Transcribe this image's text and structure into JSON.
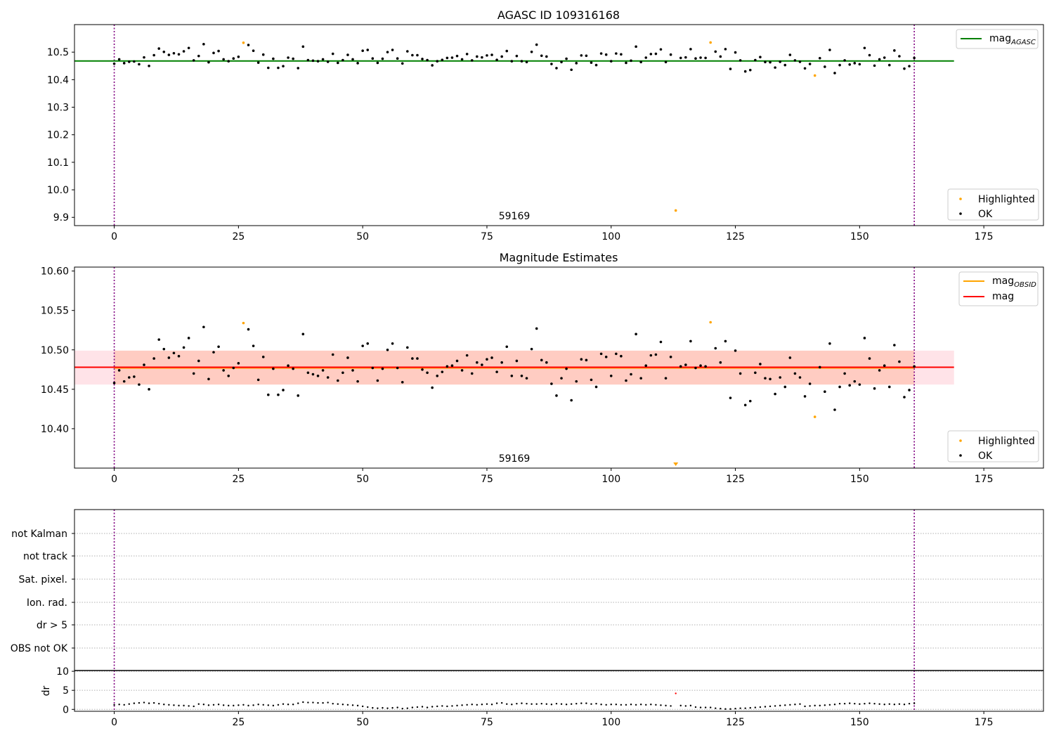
{
  "chart_data": [
    {
      "type": "scatter",
      "title": "AGASC ID 109316168",
      "xlim": [
        -8,
        187
      ],
      "ylim": [
        9.87,
        10.6
      ],
      "xticks": [
        0,
        25,
        50,
        75,
        100,
        125,
        150,
        175
      ],
      "yticks": [
        9.9,
        10.0,
        10.1,
        10.2,
        10.3,
        10.4,
        10.5
      ],
      "ytick_decimals": 1,
      "annotation": "59169",
      "vlines": [
        0,
        161
      ],
      "hline": {
        "name": "mag_AGASC",
        "value": 10.468,
        "x_range": [
          -8,
          169
        ],
        "color": "#008000"
      },
      "legend_line": {
        "label": "mag",
        "sub": "AGASC",
        "color": "#008000"
      },
      "legend_points": [
        {
          "label": "Highlighted",
          "color": "#ffa500"
        },
        {
          "label": "OK",
          "color": "#000000"
        }
      ],
      "series": [
        {
          "name": "OK",
          "color": "#000000",
          "x": [
            0,
            1,
            2,
            3,
            4,
            5,
            6,
            7,
            8,
            9,
            10,
            11,
            12,
            13,
            14,
            15,
            16,
            17,
            18,
            19,
            20,
            21,
            22,
            23,
            24,
            25,
            27,
            28,
            29,
            30,
            31,
            32,
            33,
            34,
            35,
            36,
            37,
            38,
            39,
            40,
            41,
            42,
            43,
            44,
            45,
            46,
            47,
            48,
            49,
            50,
            51,
            52,
            53,
            54,
            55,
            56,
            57,
            58,
            59,
            60,
            61,
            62,
            63,
            64,
            65,
            66,
            67,
            68,
            69,
            70,
            71,
            72,
            73,
            74,
            75,
            76,
            77,
            78,
            79,
            80,
            81,
            82,
            83,
            84,
            85,
            86,
            87,
            88,
            89,
            90,
            91,
            92,
            93,
            94,
            95,
            96,
            97,
            98,
            99,
            100,
            101,
            102,
            103,
            104,
            105,
            106,
            107,
            108,
            109,
            110,
            111,
            112,
            114,
            115,
            116,
            117,
            118,
            119,
            121,
            122,
            123,
            124,
            125,
            126,
            127,
            128,
            129,
            130,
            131,
            132,
            133,
            134,
            135,
            136,
            137,
            138,
            139,
            140,
            142,
            143,
            144,
            145,
            146,
            147,
            148,
            149,
            150,
            151,
            152,
            153,
            154,
            155,
            156,
            157,
            158,
            159,
            160,
            161
          ],
          "y": [
            10.458,
            10.474,
            10.46,
            10.465,
            10.466,
            10.456,
            10.481,
            10.45,
            10.489,
            10.513,
            10.501,
            10.49,
            10.496,
            10.492,
            10.503,
            10.515,
            10.47,
            10.486,
            10.529,
            10.463,
            10.497,
            10.504,
            10.474,
            10.467,
            10.477,
            10.483,
            10.526,
            10.505,
            10.462,
            10.491,
            10.443,
            10.476,
            10.443,
            10.449,
            10.48,
            10.476,
            10.442,
            10.52,
            10.471,
            10.469,
            10.467,
            10.474,
            10.465,
            10.494,
            10.461,
            10.471,
            10.49,
            10.474,
            10.46,
            10.505,
            10.508,
            10.477,
            10.461,
            10.476,
            10.5,
            10.508,
            10.477,
            10.459,
            10.503,
            10.489,
            10.489,
            10.475,
            10.471,
            10.452,
            10.467,
            10.472,
            10.479,
            10.48,
            10.486,
            10.474,
            10.493,
            10.47,
            10.484,
            10.481,
            10.488,
            10.49,
            10.472,
            10.484,
            10.504,
            10.467,
            10.486,
            10.467,
            10.464,
            10.501,
            10.527,
            10.487,
            10.484,
            10.457,
            10.442,
            10.464,
            10.476,
            10.436,
            10.46,
            10.488,
            10.487,
            10.462,
            10.453,
            10.495,
            10.491,
            10.467,
            10.495,
            10.492,
            10.461,
            10.469,
            10.52,
            10.464,
            10.48,
            10.493,
            10.494,
            10.51,
            10.464,
            10.491,
            10.479,
            10.481,
            10.511,
            10.477,
            10.48,
            10.479,
            10.502,
            10.484,
            10.511,
            10.439,
            10.499,
            10.47,
            10.43,
            10.435,
            10.471,
            10.482,
            10.464,
            10.463,
            10.444,
            10.465,
            10.453,
            10.49,
            10.47,
            10.465,
            10.441,
            10.457,
            10.478,
            10.447,
            10.508,
            10.424,
            10.453,
            10.47,
            10.455,
            10.46,
            10.456,
            10.515,
            10.489,
            10.451,
            10.474,
            10.48,
            10.453,
            10.506,
            10.485,
            10.44,
            10.449,
            10.479
          ]
        },
        {
          "name": "Highlighted",
          "color": "#ffa500",
          "x": [
            26,
            113,
            120,
            141
          ],
          "y": [
            10.534,
            9.925,
            10.535,
            10.415
          ]
        }
      ]
    },
    {
      "type": "scatter",
      "title": "Magnitude Estimates",
      "xlim": [
        -8,
        187
      ],
      "ylim": [
        10.35,
        10.605
      ],
      "xticks": [
        0,
        25,
        50,
        75,
        100,
        125,
        150,
        175
      ],
      "yticks": [
        10.4,
        10.45,
        10.5,
        10.55,
        10.6
      ],
      "ytick_decimals": 2,
      "annotation": "59169",
      "vlines": [
        0,
        161
      ],
      "hline": {
        "name": "mag",
        "value": 10.478,
        "x_range": [
          -8,
          169
        ],
        "color": "#ff0000"
      },
      "bands": [
        {
          "y0": 10.456,
          "y1": 10.499,
          "x_range": [
            -8,
            169
          ],
          "color": "#ffc0cb",
          "opacity": 0.45
        },
        {
          "y0": 10.456,
          "y1": 10.499,
          "x_range": [
            0,
            161
          ],
          "color": "#ffa07a",
          "opacity": 0.35
        }
      ],
      "obsid_line": {
        "name": "mag_OBSID",
        "value": 10.477,
        "x_range": [
          0,
          161
        ],
        "color": "#ffa500"
      },
      "legend_lines": [
        {
          "label": "mag",
          "sub": "OBSID",
          "color": "#ffa500"
        },
        {
          "label": "mag",
          "sub": "",
          "color": "#ff0000"
        }
      ],
      "legend_points": [
        {
          "label": "Highlighted",
          "color": "#ffa500"
        },
        {
          "label": "OK",
          "color": "#000000"
        }
      ],
      "below_range_marker": {
        "x": 113,
        "color": "#ffa500"
      },
      "series": [
        {
          "name": "OK",
          "color": "#000000",
          "ref": 0
        },
        {
          "name": "Highlighted",
          "color": "#ffa500",
          "x": [
            26,
            120,
            141
          ],
          "y": [
            10.534,
            10.535,
            10.415
          ]
        }
      ]
    },
    {
      "type": "scatter",
      "title": "",
      "xlim": [
        -8,
        187
      ],
      "categories": [
        "not Kalman",
        "not track",
        "Sat. pixel.",
        "Ion. rad.",
        "dr > 5",
        "OBS not OK"
      ],
      "vlines": [
        0,
        161
      ]
    },
    {
      "type": "scatter",
      "title": "",
      "ylabel": "dr",
      "xlim": [
        -8,
        187
      ],
      "ylim": [
        -0.5,
        10.2
      ],
      "xticks": [
        0,
        25,
        50,
        75,
        100,
        125,
        150,
        175
      ],
      "yticks": [
        0,
        5,
        10
      ],
      "vlines": [
        0,
        161
      ],
      "series": [
        {
          "name": "OK",
          "color": "#000000",
          "x": [
            0,
            1,
            2,
            3,
            4,
            5,
            6,
            7,
            8,
            9,
            10,
            11,
            12,
            13,
            14,
            15,
            16,
            17,
            18,
            19,
            20,
            21,
            22,
            23,
            24,
            25,
            26,
            27,
            28,
            29,
            30,
            31,
            32,
            33,
            34,
            35,
            36,
            37,
            38,
            39,
            40,
            41,
            42,
            43,
            44,
            45,
            46,
            47,
            48,
            49,
            50,
            51,
            52,
            53,
            54,
            55,
            56,
            57,
            58,
            59,
            60,
            61,
            62,
            63,
            64,
            65,
            66,
            67,
            68,
            69,
            70,
            71,
            72,
            73,
            74,
            75,
            76,
            77,
            78,
            79,
            80,
            81,
            82,
            83,
            84,
            85,
            86,
            87,
            88,
            89,
            90,
            91,
            92,
            93,
            94,
            95,
            96,
            97,
            98,
            99,
            100,
            101,
            102,
            103,
            104,
            105,
            106,
            107,
            108,
            109,
            110,
            111,
            112,
            114,
            115,
            116,
            117,
            118,
            119,
            120,
            121,
            122,
            123,
            124,
            125,
            126,
            127,
            128,
            129,
            130,
            131,
            132,
            133,
            134,
            135,
            136,
            137,
            138,
            139,
            140,
            141,
            142,
            143,
            144,
            145,
            146,
            147,
            148,
            149,
            150,
            151,
            152,
            153,
            154,
            155,
            156,
            157,
            158,
            159,
            160,
            161
          ],
          "y": [
            1.2,
            1.3,
            1.2,
            1.4,
            1.6,
            1.7,
            1.8,
            1.6,
            1.7,
            1.5,
            1.3,
            1.2,
            1.1,
            1.0,
            1.0,
            0.9,
            0.8,
            1.4,
            1.3,
            1.1,
            1.2,
            1.3,
            1.1,
            1.0,
            1.0,
            1.1,
            1.2,
            1.0,
            1.1,
            1.3,
            1.2,
            1.1,
            1.0,
            1.2,
            1.4,
            1.3,
            1.3,
            1.6,
            1.9,
            1.8,
            1.8,
            1.7,
            1.7,
            1.8,
            1.5,
            1.4,
            1.3,
            1.2,
            1.1,
            1.0,
            0.8,
            0.6,
            0.4,
            0.3,
            0.4,
            0.3,
            0.4,
            0.5,
            0.2,
            0.3,
            0.5,
            0.6,
            0.7,
            0.5,
            0.7,
            0.8,
            0.9,
            0.8,
            0.9,
            1.0,
            1.1,
            1.2,
            1.3,
            1.2,
            1.3,
            1.4,
            1.3,
            1.6,
            1.7,
            1.4,
            1.3,
            1.5,
            1.6,
            1.5,
            1.4,
            1.4,
            1.5,
            1.4,
            1.3,
            1.5,
            1.4,
            1.3,
            1.4,
            1.5,
            1.6,
            1.6,
            1.4,
            1.5,
            1.3,
            1.2,
            1.3,
            1.3,
            1.2,
            1.2,
            1.3,
            1.2,
            1.3,
            1.2,
            1.3,
            1.2,
            1.1,
            1.0,
            0.9,
            1.0,
            0.9,
            1.0,
            0.6,
            0.5,
            0.5,
            0.5,
            0.3,
            0.2,
            0.1,
            0.1,
            0.2,
            0.3,
            0.3,
            0.4,
            0.5,
            0.6,
            0.7,
            0.8,
            0.9,
            1.0,
            1.1,
            1.2,
            1.3,
            1.4,
            0.8,
            0.9,
            1.0,
            1.0,
            1.1,
            1.2,
            1.3,
            1.5,
            1.5,
            1.6,
            1.5,
            1.4,
            1.5,
            1.6,
            1.5,
            1.4,
            1.3,
            1.4,
            1.3,
            1.4,
            1.3,
            1.5,
            1.6
          ]
        },
        {
          "name": "Highlighted",
          "color": "#ff0000",
          "x": [
            113
          ],
          "y": [
            4.2
          ]
        }
      ]
    }
  ]
}
